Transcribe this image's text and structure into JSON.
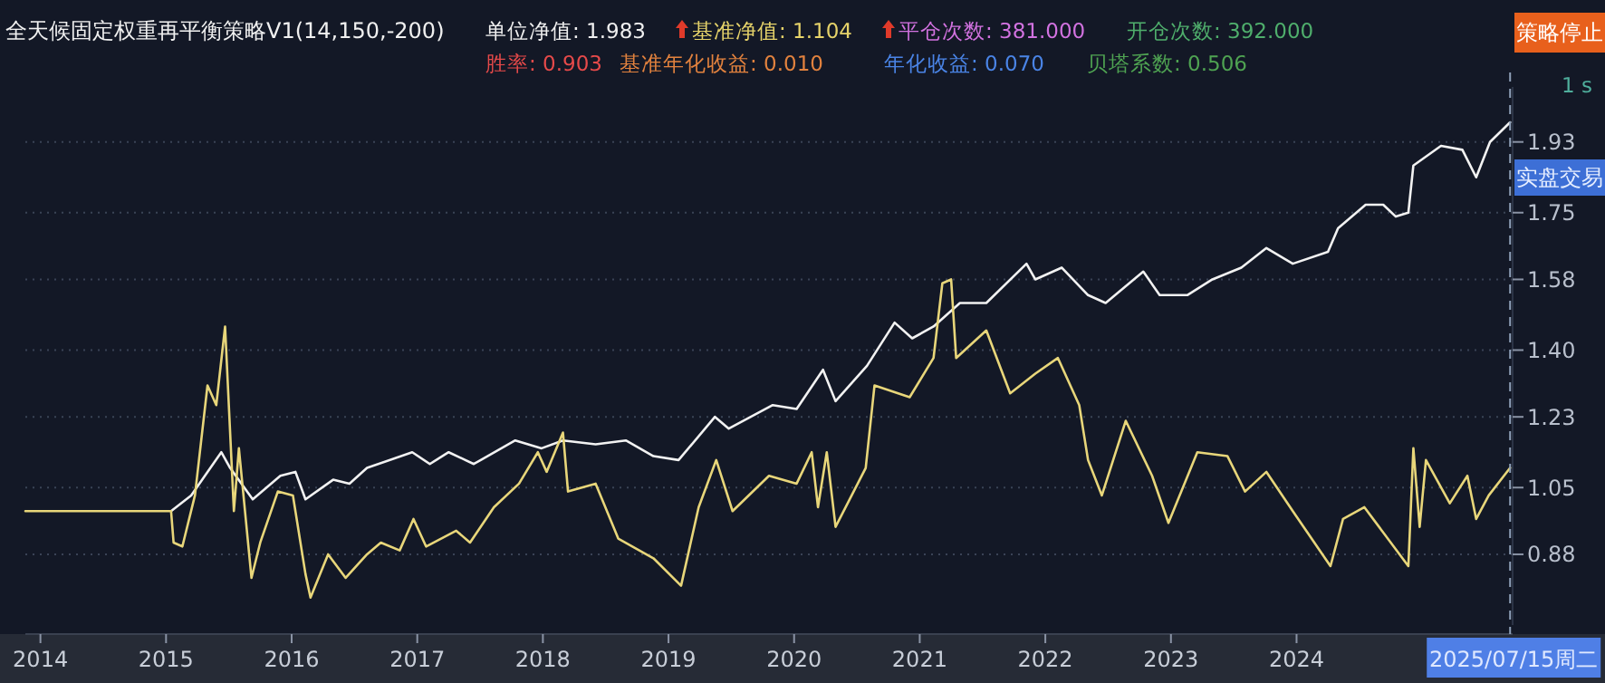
{
  "chart_data": {
    "type": "line",
    "title": "全天候固定权重再平衡策略V1(14,150,-200)",
    "annotations": [
      "单位净值: 1.983",
      "基准净值: 1.104",
      "平仓次数: 381.000",
      "开仓次数: 392.000",
      "胜率: 0.903",
      "基准年化收益: 0.010",
      "年化收益: 0.070",
      "贝塔系数: 0.506",
      "策略停止",
      "1 s",
      "实盘交易"
    ],
    "xlim": [
      2013.88,
      2025.72
    ],
    "xticks": [
      2014,
      2015,
      2016,
      2017,
      2018,
      2019,
      2020,
      2021,
      2022,
      2023,
      2024
    ],
    "ylim": [
      0.7,
      2.07
    ],
    "yticks": [
      0.88,
      1.05,
      1.23,
      {
        "value": 1.4,
        "label": "1.40"
      },
      1.58,
      1.75,
      1.93
    ],
    "grid": "y",
    "marker": "none",
    "line_style": "solid",
    "ref_lines": [
      {
        "axis": "x",
        "value": 2025.7,
        "label": "2025/07/15周二",
        "line_style": "dashed",
        "color": "#8fa0b8"
      }
    ],
    "series": [
      {
        "color": "#f2f2f2",
        "x": [
          2015.04,
          2015.2,
          2015.44,
          2015.51,
          2015.69,
          2015.91,
          2016.03,
          2016.11,
          2016.33,
          2016.46,
          2016.6,
          2016.96,
          2017.1,
          2017.25,
          2017.45,
          2017.78,
          2017.99,
          2018.16,
          2018.42,
          2018.66,
          2018.88,
          2019.08,
          2019.37,
          2019.48,
          2019.83,
          2020.02,
          2020.23,
          2020.33,
          2020.58,
          2020.8,
          2020.94,
          2021.11,
          2021.32,
          2021.53,
          2021.85,
          2021.92,
          2022.13,
          2022.34,
          2022.48,
          2022.78,
          2022.91,
          2023.13,
          2023.33,
          2023.56,
          2023.76,
          2023.97,
          2024.25,
          2024.33,
          2024.55,
          2024.69,
          2024.79,
          2024.89,
          2024.93,
          2025.15,
          2025.32,
          2025.43,
          2025.54,
          2025.7
        ],
        "values": [
          0.99,
          1.03,
          1.14,
          1.1,
          1.02,
          1.08,
          1.09,
          1.02,
          1.07,
          1.06,
          1.1,
          1.14,
          1.11,
          1.14,
          1.11,
          1.17,
          1.15,
          1.17,
          1.16,
          1.17,
          1.13,
          1.12,
          1.23,
          1.2,
          1.26,
          1.25,
          1.35,
          1.27,
          1.36,
          1.47,
          1.43,
          1.46,
          1.52,
          1.52,
          1.62,
          1.58,
          1.61,
          1.54,
          1.52,
          1.6,
          1.54,
          1.54,
          1.58,
          1.61,
          1.66,
          1.62,
          1.65,
          1.71,
          1.77,
          1.77,
          1.74,
          1.75,
          1.87,
          1.92,
          1.91,
          1.84,
          1.93,
          1.98
        ]
      },
      {
        "color": "#e8d67a",
        "x": [
          2013.88,
          2015.04,
          2015.06,
          2015.13,
          2015.23,
          2015.33,
          2015.4,
          2015.47,
          2015.54,
          2015.58,
          2015.68,
          2015.75,
          2015.89,
          2016.01,
          2016.11,
          2016.15,
          2016.29,
          2016.43,
          2016.6,
          2016.71,
          2016.86,
          2016.97,
          2017.07,
          2017.31,
          2017.42,
          2017.61,
          2017.81,
          2017.96,
          2018.03,
          2018.16,
          2018.2,
          2018.42,
          2018.6,
          2018.88,
          2019.1,
          2019.24,
          2019.38,
          2019.51,
          2019.8,
          2020.02,
          2020.14,
          2020.19,
          2020.26,
          2020.33,
          2020.57,
          2020.64,
          2020.92,
          2021.11,
          2021.18,
          2021.25,
          2021.29,
          2021.53,
          2021.72,
          2021.92,
          2022.1,
          2022.27,
          2022.34,
          2022.45,
          2022.64,
          2022.85,
          2022.98,
          2023.21,
          2023.45,
          2023.59,
          2023.76,
          2023.97,
          2024.27,
          2024.37,
          2024.54,
          2024.89,
          2024.93,
          2024.98,
          2025.03,
          2025.22,
          2025.36,
          2025.43,
          2025.53,
          2025.7
        ],
        "values": [
          0.99,
          0.99,
          0.91,
          0.9,
          1.03,
          1.31,
          1.26,
          1.46,
          0.99,
          1.15,
          0.82,
          0.91,
          1.04,
          1.03,
          0.83,
          0.77,
          0.88,
          0.82,
          0.88,
          0.91,
          0.89,
          0.97,
          0.9,
          0.94,
          0.91,
          1.0,
          1.06,
          1.14,
          1.09,
          1.19,
          1.04,
          1.06,
          0.92,
          0.87,
          0.8,
          1.0,
          1.12,
          0.99,
          1.08,
          1.06,
          1.14,
          1.0,
          1.14,
          0.95,
          1.1,
          1.31,
          1.28,
          1.38,
          1.57,
          1.58,
          1.38,
          1.45,
          1.29,
          1.34,
          1.38,
          1.26,
          1.12,
          1.03,
          1.22,
          1.08,
          0.96,
          1.14,
          1.13,
          1.04,
          1.09,
          0.99,
          0.85,
          0.97,
          1.0,
          0.85,
          1.15,
          0.95,
          1.12,
          1.01,
          1.08,
          0.97,
          1.03,
          1.1
        ]
      }
    ]
  }
}
